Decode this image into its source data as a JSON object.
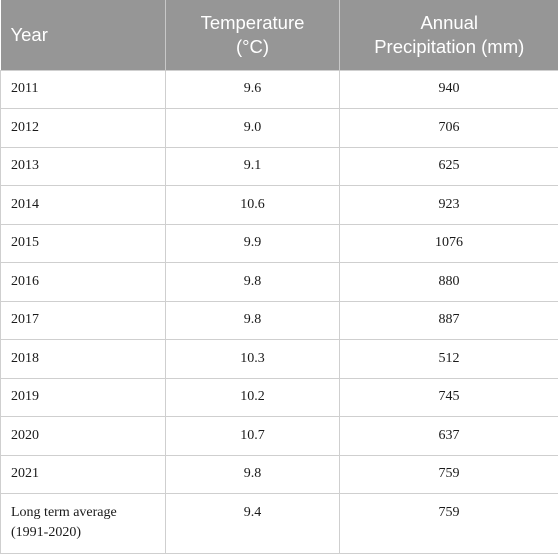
{
  "header": {
    "year": "Year",
    "temperature_line1": "Temperature",
    "temperature_line2": "(°C)",
    "precipitation_line1": "Annual",
    "precipitation_line2": "Precipitation (mm)"
  },
  "rows": [
    {
      "year": "2011",
      "temperature": "9.6",
      "precipitation": "940"
    },
    {
      "year": "2012",
      "temperature": "9.0",
      "precipitation": "706"
    },
    {
      "year": "2013",
      "temperature": "9.1",
      "precipitation": "625"
    },
    {
      "year": "2014",
      "temperature": "10.6",
      "precipitation": "923"
    },
    {
      "year": "2015",
      "temperature": "9.9",
      "precipitation": "1076"
    },
    {
      "year": "2016",
      "temperature": "9.8",
      "precipitation": "880"
    },
    {
      "year": "2017",
      "temperature": "9.8",
      "precipitation": "887"
    },
    {
      "year": "2018",
      "temperature": "10.3",
      "precipitation": "512"
    },
    {
      "year": "2019",
      "temperature": "10.2",
      "precipitation": "745"
    },
    {
      "year": "2020",
      "temperature": "10.7",
      "precipitation": "637"
    },
    {
      "year": "2021",
      "temperature": "9.8",
      "precipitation": "759"
    }
  ],
  "average": {
    "label_line1": "Long term average",
    "label_line2": "(1991-2020)",
    "temperature": "9.4",
    "precipitation": "759"
  }
}
